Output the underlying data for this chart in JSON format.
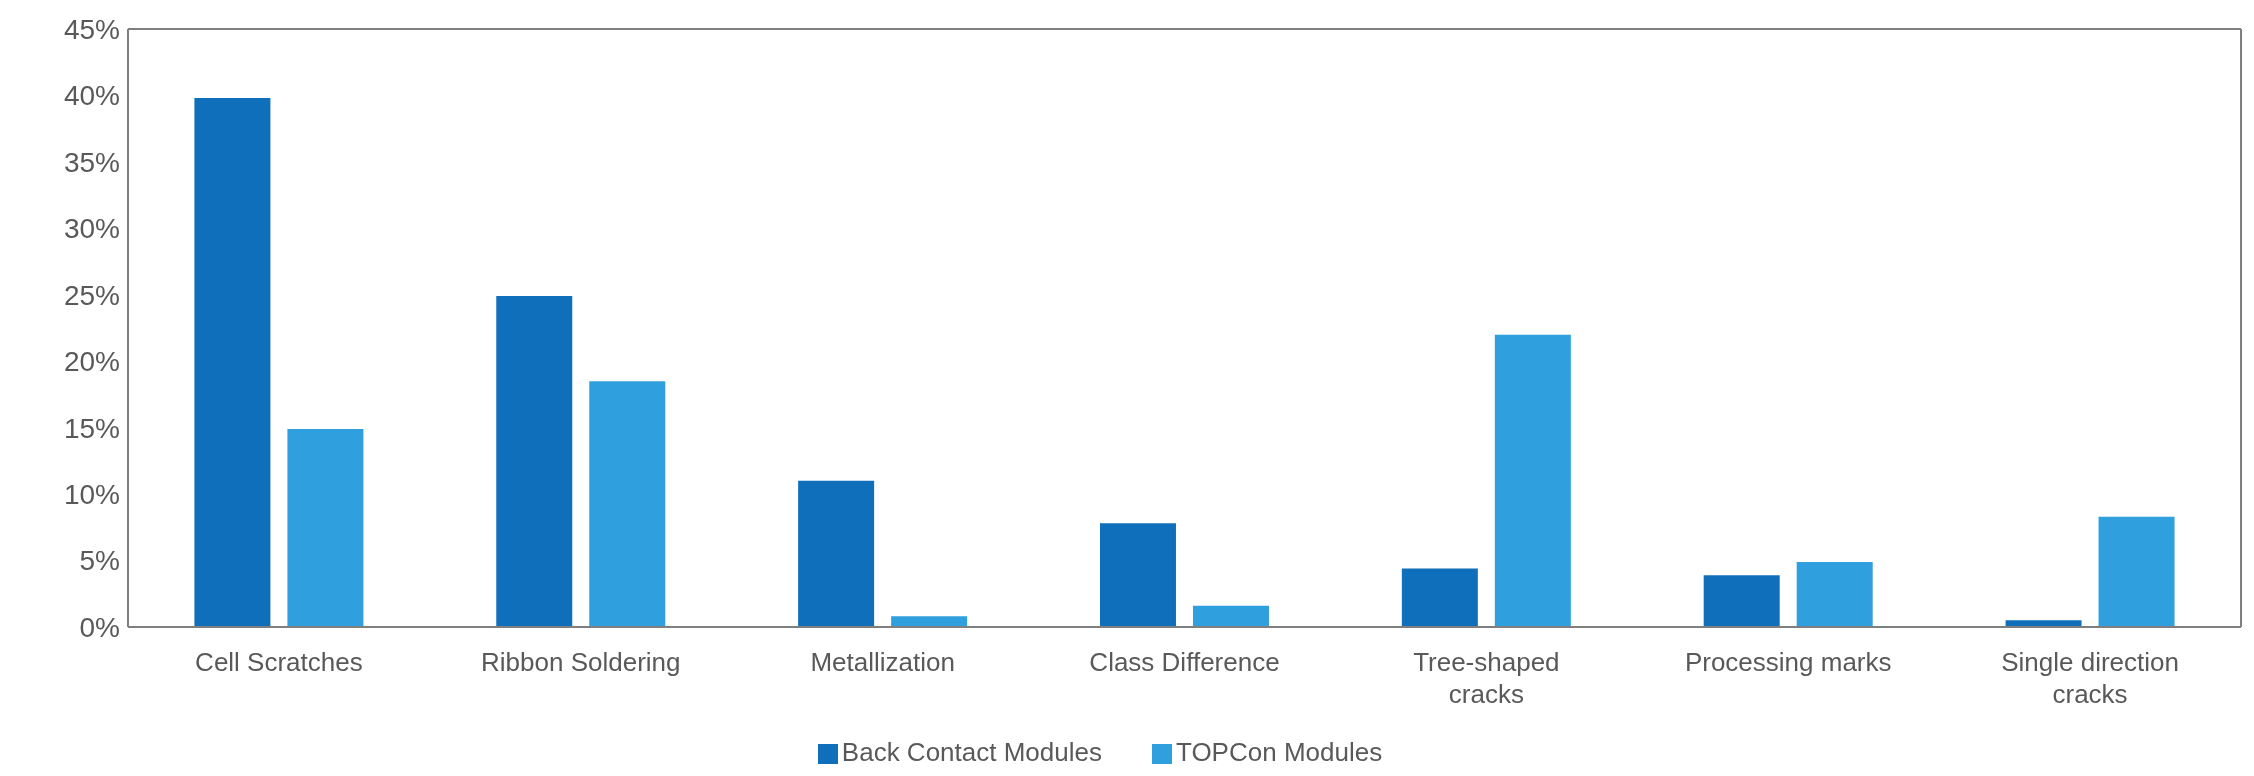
{
  "chart_data": {
    "type": "bar",
    "categories": [
      "Cell Scratches",
      "Ribbon Soldering",
      "Metallization",
      "Class Difference",
      "Tree-shaped cracks",
      "Processing marks",
      "Single direction cracks"
    ],
    "series": [
      {
        "name": "Back Contact Modules",
        "color": "#0f6fba",
        "values": [
          39.8,
          24.9,
          11.0,
          7.8,
          4.4,
          3.9,
          0.5
        ]
      },
      {
        "name": "TOPCon Modules",
        "color": "#309fde",
        "values": [
          14.9,
          18.5,
          0.8,
          1.6,
          22.0,
          4.9,
          8.3
        ]
      }
    ],
    "ylim": [
      0,
      45
    ],
    "yticks": [
      {
        "value": 0,
        "label": "0%"
      },
      {
        "value": 5,
        "label": "5%"
      },
      {
        "value": 10,
        "label": "10%"
      },
      {
        "value": 15,
        "label": "15%"
      },
      {
        "value": 20,
        "label": "20%"
      },
      {
        "value": 25,
        "label": "25%"
      },
      {
        "value": 30,
        "label": "30%"
      },
      {
        "value": 35,
        "label": "35%"
      },
      {
        "value": 40,
        "label": "40%"
      },
      {
        "value": 45,
        "label": "45%"
      }
    ],
    "grid": false,
    "legend": "bottom"
  }
}
